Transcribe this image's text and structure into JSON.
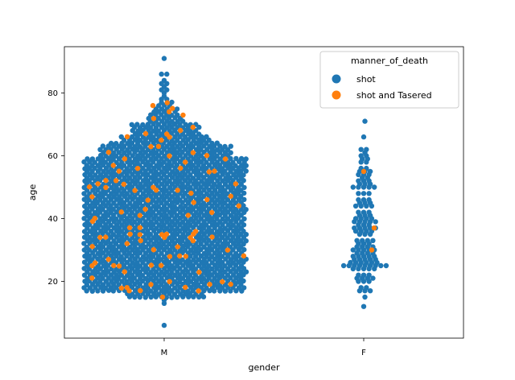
{
  "chart_data": {
    "type": "scatter",
    "subtype": "swarm",
    "xlabel": "gender",
    "ylabel": "age",
    "categories": [
      "M",
      "F"
    ],
    "ylim": [
      3,
      95
    ],
    "yticks": [
      20,
      40,
      60,
      80
    ],
    "grid": false,
    "legend": {
      "title": "manner_of_death",
      "placement": "top-right",
      "entries": [
        {
          "label": "shot",
          "color": "#1f77b4"
        },
        {
          "label": "shot and Tasered",
          "color": "#ff7f0e"
        }
      ]
    },
    "series": [
      {
        "name": "shot",
        "color": "#1f77b4",
        "approx_count": {
          "M": 2300,
          "F": 105
        },
        "range": {
          "M": [
            6,
            91
          ],
          "F": [
            12,
            71
          ]
        },
        "typical_range": {
          "M": [
            17,
            63
          ],
          "F": [
            17,
            60
          ]
        }
      },
      {
        "name": "shot and Tasered",
        "color": "#ff7f0e",
        "approx_count": {
          "M": 120,
          "F": 3
        },
        "range": {
          "M": [
            15,
            76
          ],
          "F": [
            30,
            55
          ]
        }
      }
    ]
  }
}
